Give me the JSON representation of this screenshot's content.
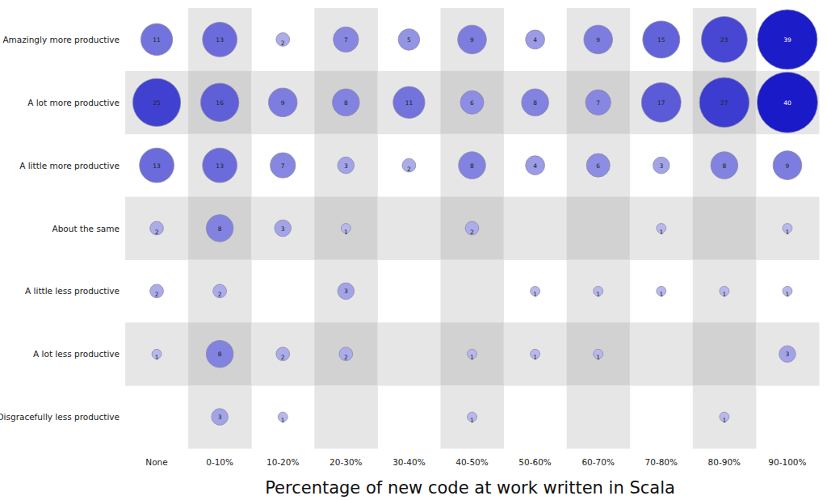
{
  "chart_data": {
    "type": "bubble",
    "x_label": "Percentage of new code at work written in Scala",
    "categories": [
      "None",
      "0-10%",
      "10-20%",
      "20-30%",
      "30-40%",
      "40-50%",
      "50-60%",
      "60-70%",
      "70-80%",
      "80-90%",
      "90-100%"
    ],
    "y_categories": [
      "Amazingly more productive",
      "A lot more productive",
      "A little more productive",
      "About the same",
      "A little less productive",
      "A lot less productive",
      "Disgracefully less productive"
    ],
    "values": [
      [
        11,
        13,
        2,
        7,
        5,
        9,
        4,
        9,
        15,
        23,
        39
      ],
      [
        25,
        16,
        9,
        8,
        11,
        6,
        8,
        7,
        17,
        27,
        40
      ],
      [
        13,
        13,
        7,
        3,
        2,
        8,
        4,
        6,
        3,
        8,
        9
      ],
      [
        2,
        8,
        3,
        1,
        null,
        2,
        null,
        null,
        1,
        null,
        1
      ],
      [
        2,
        2,
        null,
        3,
        null,
        null,
        1,
        1,
        1,
        1,
        1
      ],
      [
        1,
        8,
        2,
        2,
        null,
        1,
        1,
        1,
        null,
        null,
        3
      ],
      [
        null,
        3,
        1,
        null,
        null,
        1,
        null,
        null,
        null,
        1,
        null
      ]
    ],
    "color": "#1a1ac8",
    "grid": true,
    "data_labels": true
  }
}
